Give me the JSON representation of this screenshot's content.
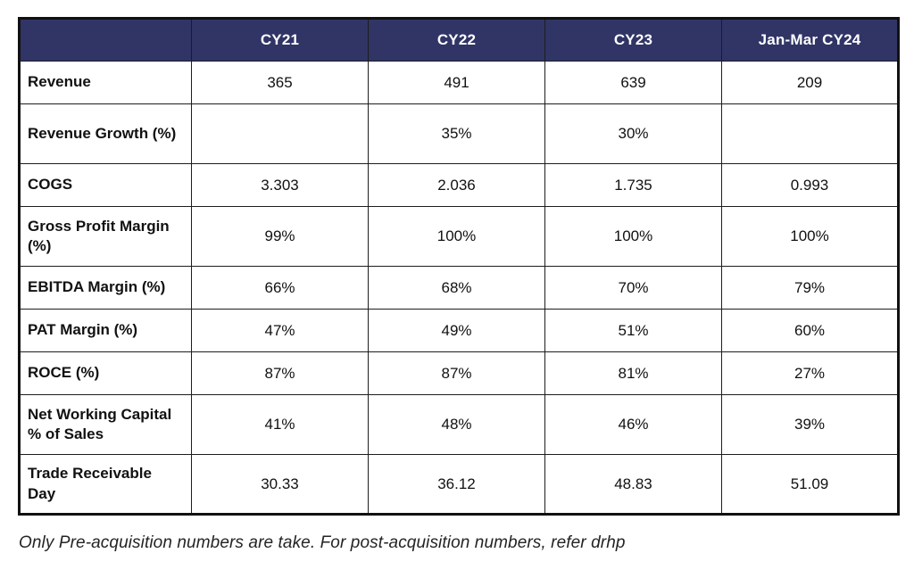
{
  "colors": {
    "header_bg": "#303566",
    "header_text": "#ffffff",
    "grid_border": "#1d1d1d",
    "outer_border": "#111111",
    "body_text": "#111111"
  },
  "chart_data": {
    "type": "table",
    "columns": [
      "",
      "CY21",
      "CY22",
      "CY23",
      "Jan-Mar CY24"
    ],
    "rows": [
      {
        "label": "Revenue",
        "values": [
          "365",
          "491",
          "639",
          "209"
        ]
      },
      {
        "label": "Revenue Growth (%)",
        "values": [
          "",
          "35%",
          "30%",
          ""
        ]
      },
      {
        "label": "COGS",
        "values": [
          "3.303",
          "2.036",
          "1.735",
          "0.993"
        ]
      },
      {
        "label": "Gross Profit Margin (%)",
        "values": [
          "99%",
          "100%",
          "100%",
          "100%"
        ]
      },
      {
        "label": "EBITDA Margin (%)",
        "values": [
          "66%",
          "68%",
          "70%",
          "79%"
        ]
      },
      {
        "label": "PAT Margin (%)",
        "values": [
          "47%",
          "49%",
          "51%",
          "60%"
        ]
      },
      {
        "label": "ROCE (%)",
        "values": [
          "87%",
          "87%",
          "81%",
          "27%"
        ]
      },
      {
        "label": "Net Working Capital % of Sales",
        "values": [
          "41%",
          "48%",
          "46%",
          "39%"
        ]
      },
      {
        "label": "Trade Receivable Day",
        "values": [
          "30.33",
          "36.12",
          "48.83",
          "51.09"
        ]
      }
    ],
    "title": "",
    "legend": false,
    "grid": true
  },
  "footnote": "Only Pre-acquisition numbers are take. For post-acquisition numbers, refer drhp"
}
